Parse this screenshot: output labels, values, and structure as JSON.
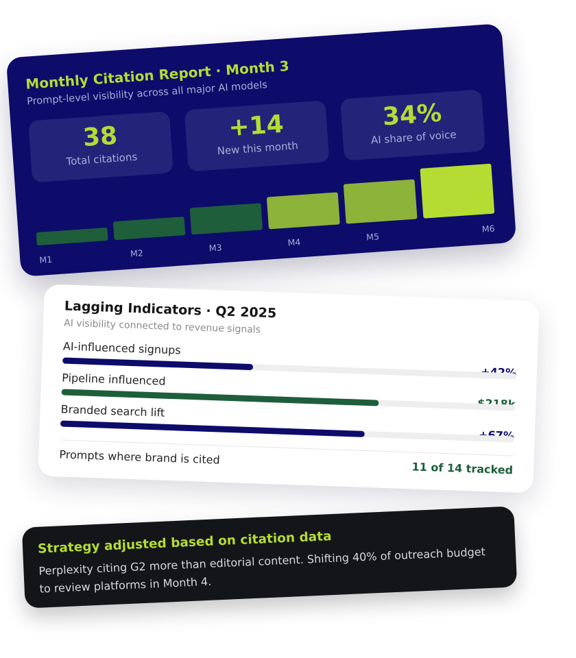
{
  "report": {
    "title": "Monthly Citation Report · Month 3",
    "subtitle": "Prompt-level visibility across all major AI models",
    "stats": [
      {
        "value": "38",
        "label": "Total citations"
      },
      {
        "value": "+14",
        "label": "New this month"
      },
      {
        "value": "34%",
        "label": "AI share of voice"
      }
    ],
    "colors": {
      "accent": "#b4dc33",
      "background": "#0d0c6b",
      "bar_dark": "#1e5e3b",
      "bar_mid": "#8db33a",
      "bar_bright": "#b4dc33"
    }
  },
  "chart_data": {
    "type": "bar",
    "categories": [
      "M1",
      "M2",
      "M3",
      "M4",
      "M5",
      "M6"
    ],
    "values": [
      2.0,
      2.8,
      4.0,
      4.8,
      6.0,
      7.5
    ],
    "title": "",
    "xlabel": "",
    "ylabel": "",
    "ylim": [
      0,
      8
    ],
    "grid": false
  },
  "lagging": {
    "title": "Lagging Indicators · Q2 2025",
    "subtitle": "AI visibility connected to revenue signals",
    "rows": [
      {
        "label": "AI-influenced signups",
        "value": "+42%",
        "progress": 0.42,
        "color": "#0d0c6b"
      },
      {
        "label": "Pipeline influenced",
        "value": "$218k",
        "progress": 0.7,
        "color": "#1e5e3b"
      },
      {
        "label": "Branded search lift",
        "value": "+67%",
        "progress": 0.67,
        "color": "#0d0c6b"
      }
    ],
    "footer": {
      "label": "Prompts where brand is cited",
      "value": "11 of 14 tracked"
    }
  },
  "strategy": {
    "title": "Strategy adjusted based on citation data",
    "body": "Perplexity citing G2 more than editorial content. Shifting 40% of outreach budget to review platforms in Month 4."
  }
}
